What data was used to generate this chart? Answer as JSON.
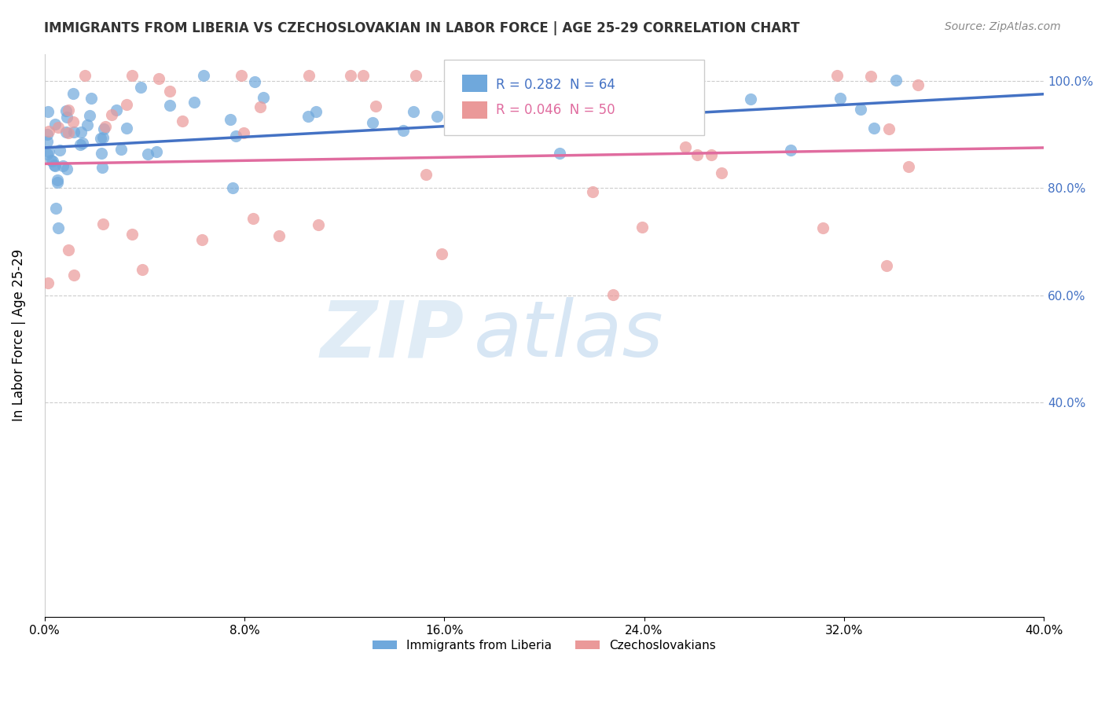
{
  "title": "IMMIGRANTS FROM LIBERIA VS CZECHOSLOVAKIAN IN LABOR FORCE | AGE 25-29 CORRELATION CHART",
  "source": "Source: ZipAtlas.com",
  "ylabel": "In Labor Force | Age 25-29",
  "xlim": [
    0.0,
    0.4
  ],
  "ylim": [
    0.0,
    1.05
  ],
  "legend_r1": "R = 0.282  N = 64",
  "legend_r2": "R = 0.046  N = 50",
  "liberia_color": "#6fa8dc",
  "czech_color": "#ea9999",
  "liberia_line_color": "#4472c4",
  "czech_line_color": "#e06c9f",
  "watermark_zip": "ZIP",
  "watermark_atlas": "atlas",
  "lib_line_y0": 0.875,
  "lib_line_y1": 0.975,
  "cze_line_y0": 0.845,
  "cze_line_y1": 0.875
}
